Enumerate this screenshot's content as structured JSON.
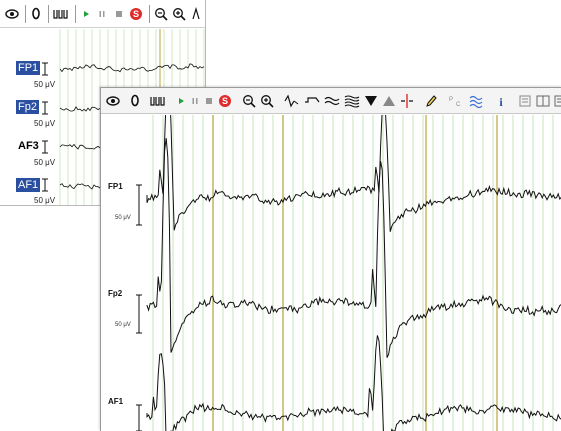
{
  "colors": {
    "grid_light": "#cfe9c6",
    "grid_marker": "#b9a640",
    "trace": "#111111",
    "label_selected_bg": "#2a4fa0",
    "stop_button": "#e02b2b",
    "play_button": "#1fa03a"
  },
  "toolbar_icons": [
    "eye-icon",
    "zero-icon",
    "waveform-icon",
    "play-icon",
    "pause-icon",
    "stop-icon",
    "record-icon",
    "zoom-out-icon",
    "zoom-in-icon",
    "spike-icon",
    "baseline-icon",
    "filter-icon",
    "multi-filter-icon",
    "triangle-down-icon",
    "triangle-up-icon",
    "marker-icon",
    "pencil-icon",
    "montage-icon",
    "wave-filter-icon",
    "info-icon",
    "print-icon",
    "layout-icon",
    "menu-icon"
  ],
  "back_window": {
    "channels": [
      {
        "label": "FP1",
        "scale": "50 μV",
        "selected": true
      },
      {
        "label": "Fp2",
        "scale": "50 μV",
        "selected": true
      },
      {
        "label": "AF3",
        "scale": "50 μV",
        "selected": false
      },
      {
        "label": "AF1",
        "scale": "50 μV",
        "selected": true
      }
    ]
  },
  "front_window": {
    "channels": [
      {
        "label": "FP1",
        "scale": "50 μV"
      },
      {
        "label": "Fp2",
        "scale": "50 μV"
      },
      {
        "label": "AF1",
        "scale": ""
      }
    ]
  }
}
